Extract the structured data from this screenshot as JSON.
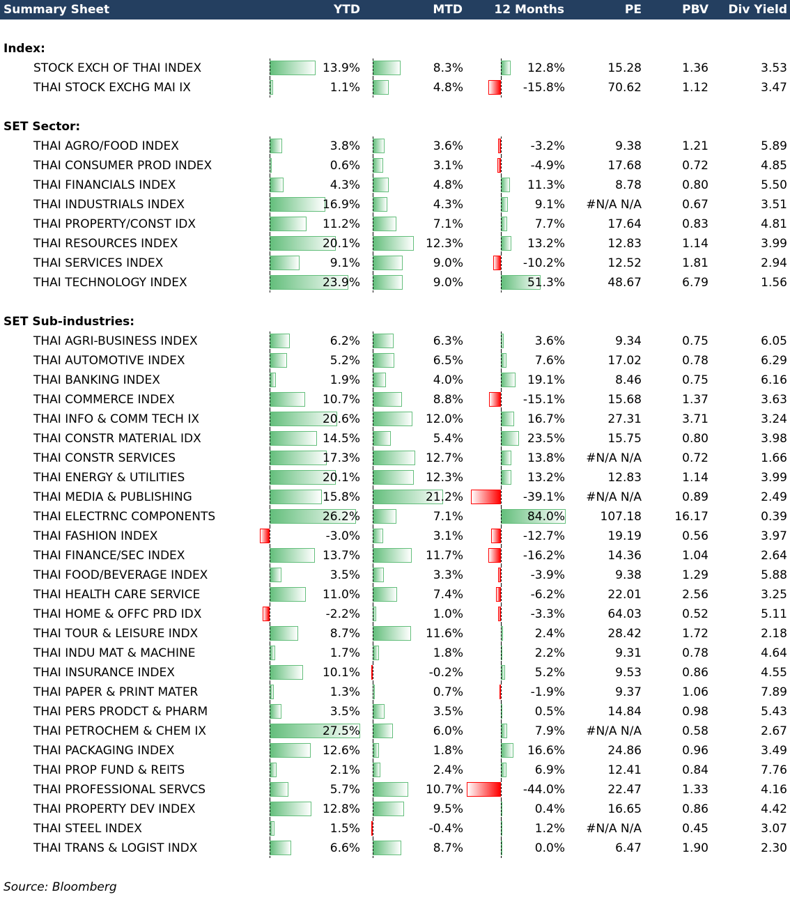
{
  "header": {
    "title": "Summary Sheet",
    "cols": [
      "YTD",
      "MTD",
      "12 Months",
      "PE",
      "PBV",
      "Div Yield"
    ]
  },
  "colors": {
    "header_bg": "#243F60",
    "positive_bar": "#63BE7B",
    "negative_bar": "#FF0000"
  },
  "sections": [
    {
      "title": "Index:",
      "rows": [
        {
          "name": "STOCK EXCH OF THAI INDEX",
          "ytd": "13.9%",
          "mtd": "8.3%",
          "m12": "12.8%",
          "pe": "15.28",
          "pbv": "1.36",
          "dy": "3.53"
        },
        {
          "name": "THAI STOCK EXCHG MAI IX",
          "ytd": "1.1%",
          "mtd": "4.8%",
          "m12": "-15.8%",
          "pe": "70.62",
          "pbv": "1.12",
          "dy": "3.47"
        }
      ]
    },
    {
      "title": "SET Sector:",
      "rows": [
        {
          "name": "THAI AGRO/FOOD INDEX",
          "ytd": "3.8%",
          "mtd": "3.6%",
          "m12": "-3.2%",
          "pe": "9.38",
          "pbv": "1.21",
          "dy": "5.89"
        },
        {
          "name": "THAI CONSUMER PROD INDEX",
          "ytd": "0.6%",
          "mtd": "3.1%",
          "m12": "-4.9%",
          "pe": "17.68",
          "pbv": "0.72",
          "dy": "4.85"
        },
        {
          "name": "THAI FINANCIALS INDEX",
          "ytd": "4.3%",
          "mtd": "4.8%",
          "m12": "11.3%",
          "pe": "8.78",
          "pbv": "0.80",
          "dy": "5.50"
        },
        {
          "name": "THAI INDUSTRIALS INDEX",
          "ytd": "16.9%",
          "mtd": "4.3%",
          "m12": "9.1%",
          "pe": "#N/A N/A",
          "pbv": "0.67",
          "dy": "3.51"
        },
        {
          "name": "THAI PROPERTY/CONST IDX",
          "ytd": "11.2%",
          "mtd": "7.1%",
          "m12": "7.7%",
          "pe": "17.64",
          "pbv": "0.83",
          "dy": "4.81"
        },
        {
          "name": "THAI RESOURCES INDEX",
          "ytd": "20.1%",
          "mtd": "12.3%",
          "m12": "13.2%",
          "pe": "12.83",
          "pbv": "1.14",
          "dy": "3.99"
        },
        {
          "name": "THAI SERVICES INDEX",
          "ytd": "9.1%",
          "mtd": "9.0%",
          "m12": "-10.2%",
          "pe": "12.52",
          "pbv": "1.81",
          "dy": "2.94"
        },
        {
          "name": "THAI TECHNOLOGY INDEX",
          "ytd": "23.9%",
          "mtd": "9.0%",
          "m12": "51.3%",
          "pe": "48.67",
          "pbv": "6.79",
          "dy": "1.56"
        }
      ]
    },
    {
      "title": "SET Sub-industries:",
      "rows": [
        {
          "name": "THAI AGRI-BUSINESS INDEX",
          "ytd": "6.2%",
          "mtd": "6.3%",
          "m12": "3.6%",
          "pe": "9.34",
          "pbv": "0.75",
          "dy": "6.05"
        },
        {
          "name": "THAI AUTOMOTIVE INDEX",
          "ytd": "5.2%",
          "mtd": "6.5%",
          "m12": "7.6%",
          "pe": "17.02",
          "pbv": "0.78",
          "dy": "6.29"
        },
        {
          "name": "THAI BANKING INDEX",
          "ytd": "1.9%",
          "mtd": "4.0%",
          "m12": "19.1%",
          "pe": "8.46",
          "pbv": "0.75",
          "dy": "6.16"
        },
        {
          "name": "THAI COMMERCE INDEX",
          "ytd": "10.7%",
          "mtd": "8.8%",
          "m12": "-15.1%",
          "pe": "15.68",
          "pbv": "1.37",
          "dy": "3.63"
        },
        {
          "name": "THAI INFO & COMM TECH IX",
          "ytd": "20.6%",
          "mtd": "12.0%",
          "m12": "16.7%",
          "pe": "27.31",
          "pbv": "3.71",
          "dy": "3.24"
        },
        {
          "name": "THAI CONSTR MATERIAL IDX",
          "ytd": "14.5%",
          "mtd": "5.4%",
          "m12": "23.5%",
          "pe": "15.75",
          "pbv": "0.80",
          "dy": "3.98"
        },
        {
          "name": "THAI CONSTR SERVICES",
          "ytd": "17.3%",
          "mtd": "12.7%",
          "m12": "13.8%",
          "pe": "#N/A N/A",
          "pbv": "0.72",
          "dy": "1.66"
        },
        {
          "name": "THAI ENERGY & UTILITIES",
          "ytd": "20.1%",
          "mtd": "12.3%",
          "m12": "13.2%",
          "pe": "12.83",
          "pbv": "1.14",
          "dy": "3.99"
        },
        {
          "name": "THAI MEDIA & PUBLISHING",
          "ytd": "15.8%",
          "mtd": "21.2%",
          "m12": "-39.1%",
          "pe": "#N/A N/A",
          "pbv": "0.89",
          "dy": "2.49"
        },
        {
          "name": "THAI ELECTRNC COMPONENTS",
          "ytd": "26.2%",
          "mtd": "7.1%",
          "m12": "84.0%",
          "pe": "107.18",
          "pbv": "16.17",
          "dy": "0.39"
        },
        {
          "name": "THAI FASHION INDEX",
          "ytd": "-3.0%",
          "mtd": "3.1%",
          "m12": "-12.7%",
          "pe": "19.19",
          "pbv": "0.56",
          "dy": "3.97"
        },
        {
          "name": "THAI FINANCE/SEC INDEX",
          "ytd": "13.7%",
          "mtd": "11.7%",
          "m12": "-16.2%",
          "pe": "14.36",
          "pbv": "1.04",
          "dy": "2.64"
        },
        {
          "name": "THAI FOOD/BEVERAGE INDEX",
          "ytd": "3.5%",
          "mtd": "3.3%",
          "m12": "-3.9%",
          "pe": "9.38",
          "pbv": "1.29",
          "dy": "5.88"
        },
        {
          "name": "THAI HEALTH CARE SERVICE",
          "ytd": "11.0%",
          "mtd": "7.4%",
          "m12": "-6.2%",
          "pe": "22.01",
          "pbv": "2.56",
          "dy": "3.25"
        },
        {
          "name": "THAI HOME & OFFC PRD IDX",
          "ytd": "-2.2%",
          "mtd": "1.0%",
          "m12": "-3.3%",
          "pe": "64.03",
          "pbv": "0.52",
          "dy": "5.11"
        },
        {
          "name": "THAI TOUR & LEISURE INDX",
          "ytd": "8.7%",
          "mtd": "11.6%",
          "m12": "2.4%",
          "pe": "28.42",
          "pbv": "1.72",
          "dy": "2.18"
        },
        {
          "name": "THAI INDU MAT & MACHINE",
          "ytd": "1.7%",
          "mtd": "1.8%",
          "m12": "2.2%",
          "pe": "9.31",
          "pbv": "0.78",
          "dy": "4.64"
        },
        {
          "name": "THAI INSURANCE INDEX",
          "ytd": "10.1%",
          "mtd": "-0.2%",
          "m12": "5.2%",
          "pe": "9.53",
          "pbv": "0.86",
          "dy": "4.55"
        },
        {
          "name": "THAI PAPER & PRINT MATER",
          "ytd": "1.3%",
          "mtd": "0.7%",
          "m12": "-1.9%",
          "pe": "9.37",
          "pbv": "1.06",
          "dy": "7.89"
        },
        {
          "name": "THAI PERS PRODCT & PHARM",
          "ytd": "3.5%",
          "mtd": "3.5%",
          "m12": "0.5%",
          "pe": "14.84",
          "pbv": "0.98",
          "dy": "5.43"
        },
        {
          "name": "THAI PETROCHEM & CHEM IX",
          "ytd": "27.5%",
          "mtd": "6.0%",
          "m12": "7.9%",
          "pe": "#N/A N/A",
          "pbv": "0.58",
          "dy": "2.67"
        },
        {
          "name": "THAI PACKAGING INDEX",
          "ytd": "12.6%",
          "mtd": "1.8%",
          "m12": "16.6%",
          "pe": "24.86",
          "pbv": "0.96",
          "dy": "3.49"
        },
        {
          "name": "THAI PROP FUND & REITS",
          "ytd": "2.1%",
          "mtd": "2.4%",
          "m12": "6.9%",
          "pe": "12.41",
          "pbv": "0.84",
          "dy": "7.76"
        },
        {
          "name": "THAI PROFESSIONAL SERVCS",
          "ytd": "5.7%",
          "mtd": "10.7%",
          "m12": "-44.0%",
          "pe": "22.47",
          "pbv": "1.33",
          "dy": "4.16"
        },
        {
          "name": "THAI PROPERTY DEV INDEX",
          "ytd": "12.8%",
          "mtd": "9.5%",
          "m12": "0.4%",
          "pe": "16.65",
          "pbv": "0.86",
          "dy": "4.42"
        },
        {
          "name": "THAI STEEL INDEX",
          "ytd": "1.5%",
          "mtd": "-0.4%",
          "m12": "1.2%",
          "pe": "#N/A N/A",
          "pbv": "0.45",
          "dy": "3.07"
        },
        {
          "name": "THAI TRANS & LOGIST INDX",
          "ytd": "6.6%",
          "mtd": "8.7%",
          "m12": "0.0%",
          "pe": "6.47",
          "pbv": "1.90",
          "dy": "2.30"
        }
      ]
    }
  ],
  "footer": {
    "source": "Source: Bloomberg"
  }
}
